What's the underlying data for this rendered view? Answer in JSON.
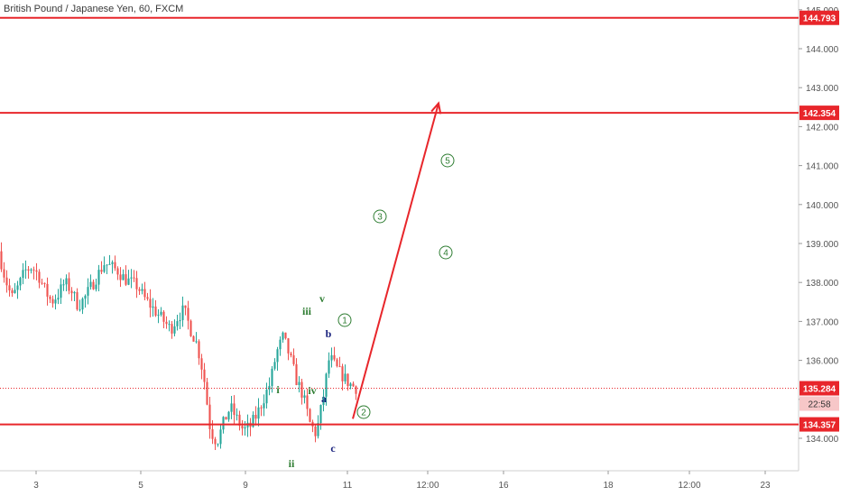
{
  "chart_data": {
    "type": "candlestick",
    "title": "British Pound / Japanese Yen, 60, FXCM",
    "ylim": [
      133.2,
      145.1
    ],
    "y_ticks": [
      "145.000",
      "144.000",
      "143.000",
      "142.000",
      "141.000",
      "140.000",
      "139.000",
      "138.000",
      "137.000",
      "136.000",
      "135.000",
      "134.000"
    ],
    "x_ticks": [
      "3",
      "5",
      "9",
      "11",
      "12:00",
      "16",
      "18",
      "12:00",
      "23"
    ],
    "levels": [
      {
        "label": "144.793",
        "value": 144.793
      },
      {
        "label": "142.354",
        "value": 142.354
      },
      {
        "label": "134.357",
        "value": 134.357
      }
    ],
    "current_price": {
      "label": "135.284",
      "value": 135.284,
      "countdown": "22:58"
    },
    "wave_labels_green": [
      "i",
      "ii",
      "iii",
      "iv",
      "v"
    ],
    "wave_labels_blue": [
      "a",
      "b",
      "c"
    ],
    "circled_labels": [
      "1",
      "2",
      "3",
      "4",
      "5"
    ],
    "arrow": {
      "from": {
        "x_tick": "11",
        "y": 134.5
      },
      "to": {
        "x_tick": "12:00",
        "y": 142.6
      }
    },
    "price_path": [
      138.8,
      138.1,
      137.6,
      137.9,
      138.3,
      138.4,
      138.2,
      137.8,
      137.5,
      137.7,
      138.0,
      137.8,
      137.4,
      137.6,
      137.9,
      138.2,
      138.5,
      138.4,
      138.3,
      138.1,
      138.0,
      137.9,
      137.6,
      137.4,
      137.2,
      137.0,
      136.8,
      137.1,
      137.3,
      136.8,
      136.4,
      135.6,
      134.2,
      133.9,
      134.4,
      134.8,
      134.5,
      134.2,
      134.3,
      134.6,
      135.0,
      135.4,
      136.2,
      136.6,
      136.1,
      135.5,
      135.1,
      134.4,
      134.1,
      135.0,
      136.1,
      135.8,
      135.6,
      135.4,
      135.3
    ]
  }
}
